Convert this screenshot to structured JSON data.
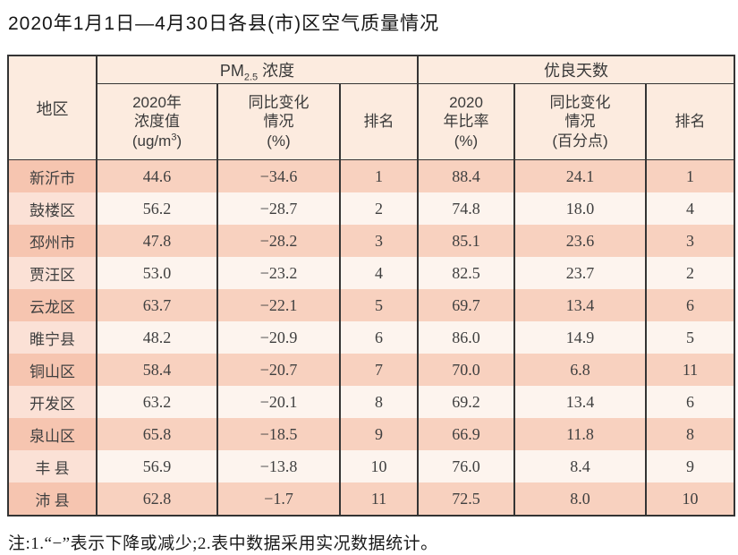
{
  "title": "2020年1月1日—4月30日各县(市)区空气质量情况",
  "note": "注:1.“−”表示下降或减少;2.表中数据采用实况数据统计。",
  "colors": {
    "header_bg": "#fcebdf",
    "row_odd_bg": "#f8d1bf",
    "row_odd_region_bg": "#f6c5b0",
    "row_even_bg": "#fdf4ee",
    "row_even_region_bg": "#fbe1d6",
    "border": "#343434",
    "text": "#3f3f3f"
  },
  "table": {
    "region_header": "地区",
    "pm_group": {
      "prefix": "PM",
      "sub": "2.5",
      "suffix": " 浓度"
    },
    "good_group": "优良天数",
    "col_pm_value": {
      "line1": "2020年",
      "line2": "浓度值",
      "line3_pre": "(ug/m",
      "line3_sup": "3",
      "line3_post": ")"
    },
    "col_pm_change": {
      "line1": "同比变化",
      "line2": "情况",
      "line3": "(%)"
    },
    "col_pm_rank": "排名",
    "col_good_rate": {
      "line1": "2020",
      "line2": "年比率",
      "line3": "(%)"
    },
    "col_good_change": {
      "line1": "同比变化",
      "line2": "情况",
      "line3": "(百分点)"
    },
    "col_good_rank": "排名",
    "rows": [
      {
        "region": "新沂市",
        "pm_value": "44.6",
        "pm_change": "−34.6",
        "pm_rank": "1",
        "good_rate": "88.4",
        "good_change": "24.1",
        "good_rank": "1"
      },
      {
        "region": "鼓楼区",
        "pm_value": "56.2",
        "pm_change": "−28.7",
        "pm_rank": "2",
        "good_rate": "74.8",
        "good_change": "18.0",
        "good_rank": "4"
      },
      {
        "region": "邳州市",
        "pm_value": "47.8",
        "pm_change": "−28.2",
        "pm_rank": "3",
        "good_rate": "85.1",
        "good_change": "23.6",
        "good_rank": "3"
      },
      {
        "region": "贾汪区",
        "pm_value": "53.0",
        "pm_change": "−23.2",
        "pm_rank": "4",
        "good_rate": "82.5",
        "good_change": "23.7",
        "good_rank": "2"
      },
      {
        "region": "云龙区",
        "pm_value": "63.7",
        "pm_change": "−22.1",
        "pm_rank": "5",
        "good_rate": "69.7",
        "good_change": "13.4",
        "good_rank": "6"
      },
      {
        "region": "睢宁县",
        "pm_value": "48.2",
        "pm_change": "−20.9",
        "pm_rank": "6",
        "good_rate": "86.0",
        "good_change": "14.9",
        "good_rank": "5"
      },
      {
        "region": "铜山区",
        "pm_value": "58.4",
        "pm_change": "−20.7",
        "pm_rank": "7",
        "good_rate": "70.0",
        "good_change": "6.8",
        "good_rank": "11"
      },
      {
        "region": "开发区",
        "pm_value": "63.2",
        "pm_change": "−20.1",
        "pm_rank": "8",
        "good_rate": "69.2",
        "good_change": "13.4",
        "good_rank": "6"
      },
      {
        "region": "泉山区",
        "pm_value": "65.8",
        "pm_change": "−18.5",
        "pm_rank": "9",
        "good_rate": "66.9",
        "good_change": "11.8",
        "good_rank": "8"
      },
      {
        "region": "丰 县",
        "pm_value": "56.9",
        "pm_change": "−13.8",
        "pm_rank": "10",
        "good_rate": "76.0",
        "good_change": "8.4",
        "good_rank": "9"
      },
      {
        "region": "沛 县",
        "pm_value": "62.8",
        "pm_change": "−1.7",
        "pm_rank": "11",
        "good_rate": "72.5",
        "good_change": "8.0",
        "good_rank": "10"
      }
    ]
  }
}
